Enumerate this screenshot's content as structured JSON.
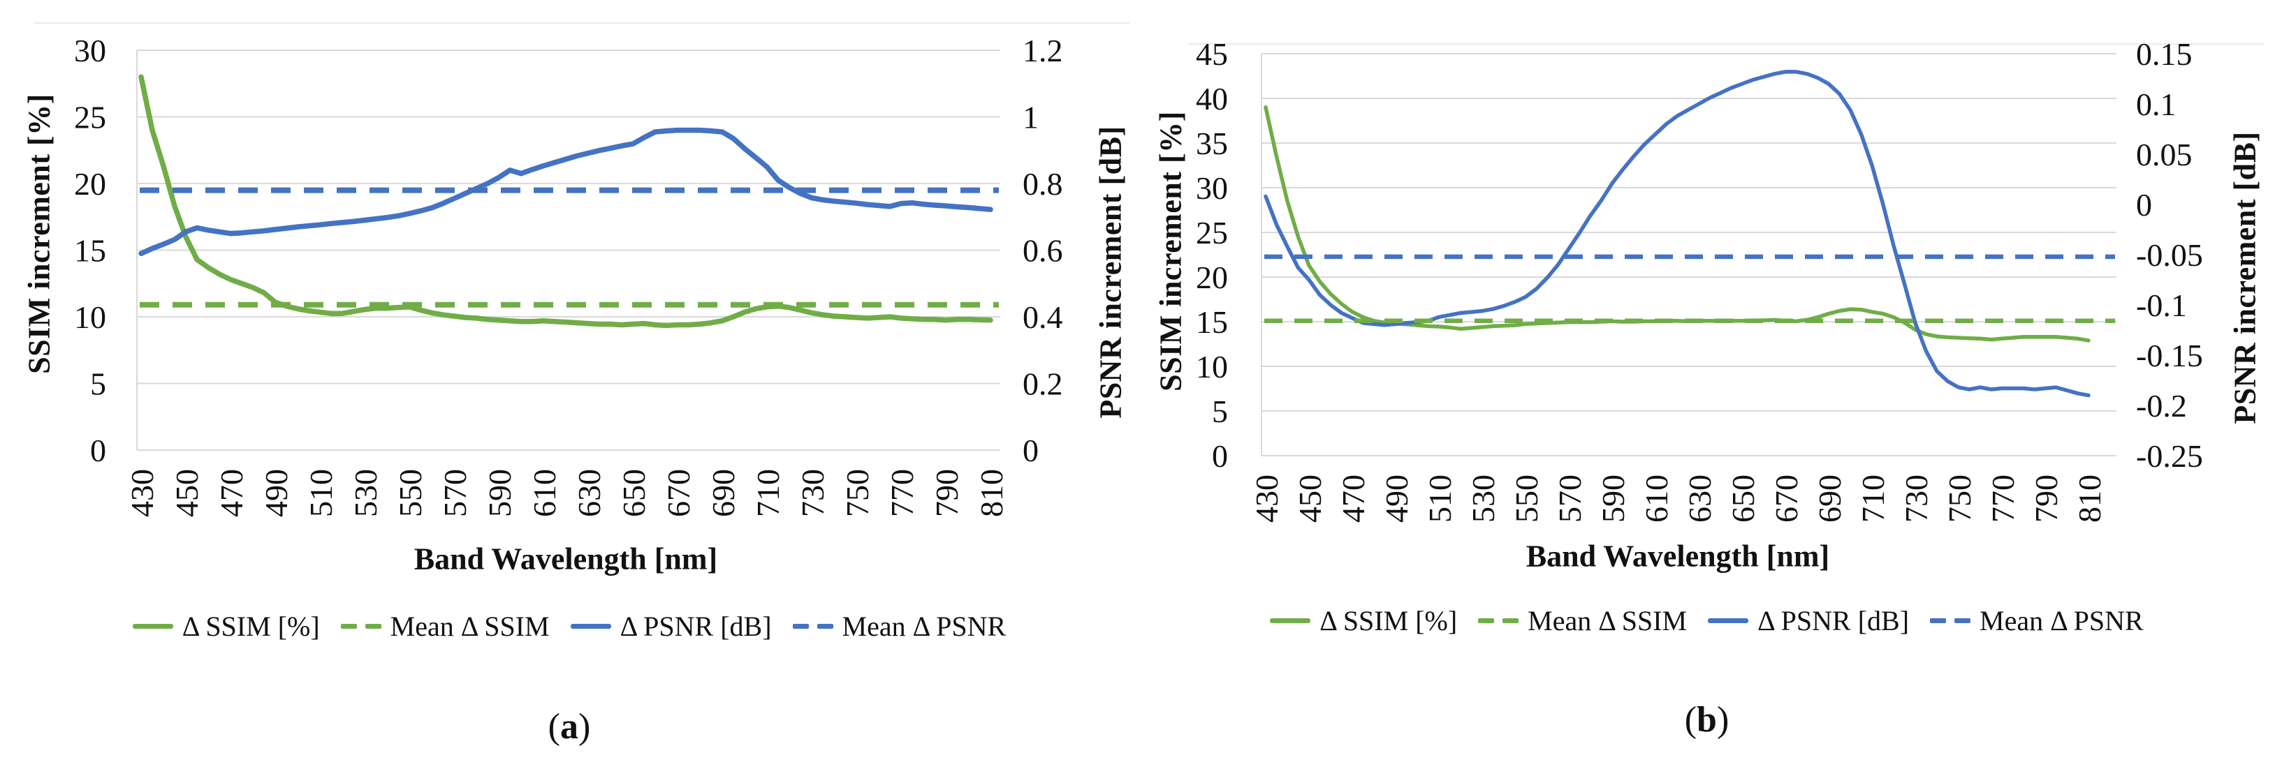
{
  "figure": {
    "colors": {
      "green": "#70AD47",
      "blue": "#4472C4",
      "gridline": "#D9D9D9",
      "frame": "#E9E9E9"
    }
  },
  "chart_data": [
    {
      "id": "a",
      "type": "line",
      "title": "",
      "caption": "(a)",
      "caption_open": "(",
      "caption_letter": "a",
      "caption_close": ")",
      "xlabel": "Band Wavelength [nm]",
      "ylabel_left": "SSIM increment [%]",
      "ylabel_right": "PSNR increment [dB]",
      "grid": true,
      "legend_position": "bottom",
      "left_axis": {
        "min": 0,
        "max": 30,
        "step": 5,
        "tick_values": [
          30,
          25,
          20,
          15,
          10,
          5,
          0
        ],
        "tick_labels": [
          "30",
          "25",
          "20",
          "15",
          "10",
          "5",
          "0"
        ]
      },
      "right_axis": {
        "min": 0,
        "max": 1.2,
        "step": 0.2,
        "tick_values": [
          1.2,
          1.0,
          0.8,
          0.6,
          0.4,
          0.2,
          0
        ],
        "tick_labels": [
          "1.2",
          "1",
          "0.8",
          "0.6",
          "0.4",
          "0.2",
          "0"
        ]
      },
      "x_axis": {
        "min": 430,
        "max": 810,
        "tick_labels": [
          "430",
          "450",
          "470",
          "490",
          "510",
          "530",
          "550",
          "570",
          "590",
          "610",
          "630",
          "650",
          "670",
          "690",
          "710",
          "730",
          "750",
          "770",
          "790",
          "810"
        ]
      },
      "x": [
        430,
        435,
        440,
        445,
        450,
        455,
        460,
        465,
        470,
        475,
        480,
        485,
        490,
        495,
        500,
        505,
        510,
        515,
        520,
        525,
        530,
        535,
        540,
        545,
        550,
        555,
        560,
        565,
        570,
        575,
        580,
        585,
        590,
        595,
        600,
        605,
        610,
        615,
        620,
        625,
        630,
        635,
        640,
        645,
        650,
        655,
        660,
        665,
        670,
        675,
        680,
        685,
        690,
        695,
        700,
        705,
        710,
        715,
        720,
        725,
        730,
        735,
        740,
        745,
        750,
        755,
        760,
        765,
        770,
        775,
        780,
        785,
        790,
        795,
        800,
        805,
        810
      ],
      "series": [
        {
          "name": "Δ SSIM [%]",
          "axis": "left",
          "style": "solid",
          "color_key": "green",
          "values": [
            28.0,
            24.0,
            21.3,
            18.3,
            16.0,
            14.3,
            13.7,
            13.2,
            12.8,
            12.5,
            12.2,
            11.8,
            11.1,
            10.8,
            10.6,
            10.45,
            10.35,
            10.25,
            10.25,
            10.4,
            10.55,
            10.65,
            10.65,
            10.7,
            10.75,
            10.5,
            10.3,
            10.15,
            10.05,
            9.95,
            9.9,
            9.8,
            9.75,
            9.7,
            9.65,
            9.65,
            9.7,
            9.65,
            9.6,
            9.55,
            9.5,
            9.45,
            9.45,
            9.4,
            9.45,
            9.5,
            9.4,
            9.35,
            9.4,
            9.4,
            9.45,
            9.55,
            9.7,
            10.0,
            10.35,
            10.6,
            10.75,
            10.8,
            10.7,
            10.5,
            10.3,
            10.15,
            10.05,
            10.0,
            9.95,
            9.9,
            9.95,
            10.0,
            9.9,
            9.85,
            9.8,
            9.8,
            9.75,
            9.8,
            9.8,
            9.78,
            9.75
          ]
        },
        {
          "name": "Mean Δ SSIM",
          "axis": "left",
          "style": "dashed",
          "color_key": "green",
          "mean": 10.9
        },
        {
          "name": "Δ PSNR [dB]",
          "axis": "right",
          "style": "solid",
          "color_key": "blue",
          "values": [
            0.59,
            0.605,
            0.618,
            0.632,
            0.655,
            0.667,
            0.66,
            0.655,
            0.65,
            0.652,
            0.655,
            0.658,
            0.662,
            0.666,
            0.67,
            0.673,
            0.676,
            0.68,
            0.683,
            0.686,
            0.69,
            0.694,
            0.698,
            0.703,
            0.71,
            0.718,
            0.727,
            0.74,
            0.755,
            0.77,
            0.785,
            0.8,
            0.818,
            0.84,
            0.83,
            0.842,
            0.853,
            0.863,
            0.873,
            0.883,
            0.891,
            0.899,
            0.906,
            0.913,
            0.919,
            0.938,
            0.955,
            0.958,
            0.96,
            0.96,
            0.96,
            0.958,
            0.955,
            0.935,
            0.905,
            0.878,
            0.85,
            0.81,
            0.788,
            0.77,
            0.757,
            0.751,
            0.747,
            0.744,
            0.741,
            0.737,
            0.734,
            0.731,
            0.74,
            0.742,
            0.738,
            0.735,
            0.733,
            0.73,
            0.728,
            0.725,
            0.722
          ]
        },
        {
          "name": "Mean Δ PSNR",
          "axis": "right",
          "style": "dashed",
          "color_key": "blue",
          "mean": 0.78
        }
      ]
    },
    {
      "id": "b",
      "type": "line",
      "title": "",
      "caption": "(b)",
      "caption_open": "(",
      "caption_letter": "b",
      "caption_close": ")",
      "xlabel": "Band Wavelength [nm]",
      "ylabel_left": "SSIM increment [%]",
      "ylabel_right": "PSNR increment [dB]",
      "grid": true,
      "legend_position": "bottom",
      "left_axis": {
        "min": 0,
        "max": 45,
        "step": 5,
        "tick_values": [
          45,
          40,
          35,
          30,
          25,
          20,
          15,
          10,
          5,
          0
        ],
        "tick_labels": [
          "45",
          "40",
          "35",
          "30",
          "25",
          "20",
          "15",
          "10",
          "5",
          "0"
        ]
      },
      "right_axis": {
        "min": -0.25,
        "max": 0.15,
        "step": 0.05,
        "tick_values": [
          0.15,
          0.1,
          0.05,
          0,
          -0.05,
          -0.1,
          -0.15,
          -0.2,
          -0.25
        ],
        "tick_labels": [
          "0.15",
          "0.1",
          "0.05",
          "0",
          "-0.05",
          "-0.1",
          "-0.15",
          "-0.2",
          "-0.25"
        ]
      },
      "x_axis": {
        "min": 430,
        "max": 810,
        "tick_labels": [
          "430",
          "450",
          "470",
          "490",
          "510",
          "530",
          "550",
          "570",
          "590",
          "610",
          "630",
          "650",
          "670",
          "690",
          "710",
          "730",
          "750",
          "770",
          "790",
          "810"
        ]
      },
      "x": [
        430,
        435,
        440,
        445,
        450,
        455,
        460,
        465,
        470,
        475,
        480,
        485,
        490,
        495,
        500,
        505,
        510,
        515,
        520,
        525,
        530,
        535,
        540,
        545,
        550,
        555,
        560,
        565,
        570,
        575,
        580,
        585,
        590,
        595,
        600,
        605,
        610,
        615,
        620,
        625,
        630,
        635,
        640,
        645,
        650,
        655,
        660,
        665,
        670,
        675,
        680,
        685,
        690,
        695,
        700,
        705,
        710,
        715,
        720,
        725,
        730,
        735,
        740,
        745,
        750,
        755,
        760,
        765,
        770,
        775,
        780,
        785,
        790,
        795,
        800,
        805,
        810
      ],
      "series": [
        {
          "name": "Δ SSIM [%]",
          "axis": "left",
          "style": "solid",
          "color_key": "green",
          "values": [
            39.0,
            33.5,
            28.5,
            24.5,
            21.3,
            19.5,
            18.1,
            17.0,
            16.1,
            15.5,
            15.1,
            14.9,
            14.8,
            14.7,
            14.6,
            14.5,
            14.45,
            14.35,
            14.2,
            14.3,
            14.4,
            14.5,
            14.55,
            14.6,
            14.75,
            14.8,
            14.85,
            14.9,
            14.95,
            14.95,
            14.95,
            15.0,
            15.05,
            15.0,
            15.0,
            15.05,
            15.05,
            15.1,
            15.1,
            15.05,
            15.1,
            15.1,
            15.1,
            15.1,
            15.1,
            15.15,
            15.15,
            15.2,
            15.1,
            15.05,
            15.2,
            15.5,
            15.9,
            16.2,
            16.4,
            16.35,
            16.1,
            15.9,
            15.5,
            14.9,
            14.1,
            13.6,
            13.35,
            13.25,
            13.2,
            13.15,
            13.1,
            13.0,
            13.1,
            13.2,
            13.3,
            13.3,
            13.3,
            13.3,
            13.2,
            13.1,
            12.9
          ]
        },
        {
          "name": "Mean Δ SSIM",
          "axis": "left",
          "style": "dashed",
          "color_key": "green",
          "mean": 15.1
        },
        {
          "name": "Δ PSNR [dB]",
          "axis": "right",
          "style": "solid",
          "color_key": "blue",
          "values": [
            0.008,
            -0.02,
            -0.042,
            -0.063,
            -0.075,
            -0.09,
            -0.1,
            -0.108,
            -0.113,
            -0.118,
            -0.119,
            -0.12,
            -0.119,
            -0.118,
            -0.117,
            -0.116,
            -0.112,
            -0.11,
            -0.108,
            -0.107,
            -0.106,
            -0.104,
            -0.101,
            -0.097,
            -0.092,
            -0.084,
            -0.073,
            -0.06,
            -0.044,
            -0.028,
            -0.011,
            0.004,
            0.021,
            0.035,
            0.048,
            0.06,
            0.07,
            0.08,
            0.088,
            0.094,
            0.1,
            0.106,
            0.111,
            0.116,
            0.12,
            0.124,
            0.127,
            0.13,
            0.132,
            0.132,
            0.13,
            0.126,
            0.12,
            0.11,
            0.094,
            0.07,
            0.039,
            0.001,
            -0.041,
            -0.079,
            -0.118,
            -0.146,
            -0.166,
            -0.176,
            -0.182,
            -0.184,
            -0.182,
            -0.184,
            -0.183,
            -0.183,
            -0.183,
            -0.184,
            -0.183,
            -0.182,
            -0.185,
            -0.188,
            -0.19
          ]
        },
        {
          "name": "Mean Δ PSNR",
          "axis": "right",
          "style": "dashed",
          "color_key": "blue",
          "mean": -0.052
        }
      ]
    }
  ]
}
